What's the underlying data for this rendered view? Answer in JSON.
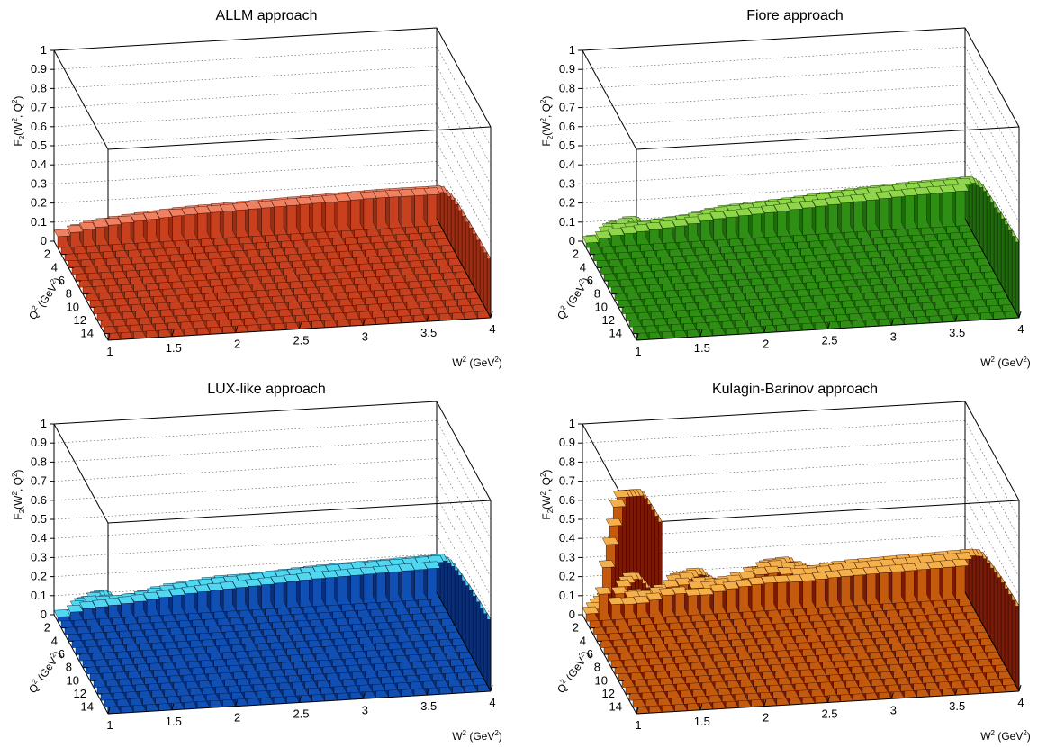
{
  "axes": {
    "x_label": "W",
    "x_label_sup": "2",
    "x_label_unit": "(GeV",
    "x_label_unit_sup": "2",
    "x_label_unit_close": ")",
    "y_label": "Q",
    "y_label_sup": "2",
    "y_label_unit": "(GeV",
    "y_label_unit_sup": "2",
    "y_label_unit_close": ")",
    "z_label_main": "F",
    "z_label_sub": "2",
    "z_label_args": "(W",
    "z_label_args_sup": "2",
    "z_label_args_rest": ", Q",
    "z_label_args_sup2": "2",
    "z_label_args_close": ")"
  },
  "chart_data": [
    {
      "type": "lego3d",
      "title": "ALLM approach",
      "colors": {
        "top": "#f08060",
        "front": "#c8401e",
        "side": "#9a2e14",
        "edge": "#2a0a00"
      },
      "x": {
        "range": [
          1,
          4
        ],
        "ticks": [
          "1",
          "1.5",
          "2",
          "2.5",
          "3",
          "3.5",
          "4"
        ],
        "tick_values": [
          1,
          1.5,
          2,
          2.5,
          3,
          3.5,
          4
        ]
      },
      "y": {
        "range": [
          0,
          15
        ],
        "ticks": [
          "2",
          "4",
          "6",
          "8",
          "10",
          "12",
          "14"
        ],
        "tick_values": [
          2,
          4,
          6,
          8,
          10,
          12,
          14
        ]
      },
      "z": {
        "range": [
          0,
          1
        ],
        "ticks": [
          "0",
          "0.1",
          "0.2",
          "0.3",
          "0.4",
          "0.5",
          "0.6",
          "0.7",
          "0.8",
          "0.9",
          "1"
        ],
        "tick_values": [
          0,
          0.1,
          0.2,
          0.3,
          0.4,
          0.5,
          0.6,
          0.7,
          0.8,
          0.9,
          1
        ]
      },
      "surface": {
        "q2_points": [
          0,
          2,
          5,
          10,
          15
        ],
        "w2_points": [
          1,
          1.1,
          1.3,
          1.6,
          2,
          2.5,
          3,
          3.5,
          4
        ],
        "values": [
          [
            0.03,
            0.05,
            0.07,
            0.09,
            0.11,
            0.12,
            0.13,
            0.14,
            0.14
          ],
          [
            0.1,
            0.13,
            0.16,
            0.18,
            0.2,
            0.21,
            0.22,
            0.23,
            0.23
          ],
          [
            0.12,
            0.16,
            0.19,
            0.22,
            0.24,
            0.26,
            0.27,
            0.28,
            0.28
          ],
          [
            0.13,
            0.18,
            0.21,
            0.24,
            0.26,
            0.28,
            0.29,
            0.3,
            0.3
          ],
          [
            0.14,
            0.19,
            0.22,
            0.25,
            0.27,
            0.29,
            0.3,
            0.31,
            0.31
          ]
        ]
      }
    },
    {
      "type": "lego3d",
      "title": "Fiore approach",
      "colors": {
        "top": "#8fd64a",
        "front": "#2f8f14",
        "side": "#1f6a0c",
        "edge": "#0a2600"
      },
      "x": {
        "range": [
          1,
          4
        ],
        "ticks": [
          "1",
          "1.5",
          "2",
          "2.5",
          "3",
          "3.5",
          "4"
        ],
        "tick_values": [
          1,
          1.5,
          2,
          2.5,
          3,
          3.5,
          4
        ]
      },
      "y": {
        "range": [
          0,
          15
        ],
        "ticks": [
          "2",
          "4",
          "6",
          "8",
          "10",
          "12",
          "14"
        ],
        "tick_values": [
          2,
          4,
          6,
          8,
          10,
          12,
          14
        ]
      },
      "z": {
        "range": [
          0,
          1
        ],
        "ticks": [
          "0",
          "0.1",
          "0.2",
          "0.3",
          "0.4",
          "0.5",
          "0.6",
          "0.7",
          "0.8",
          "0.9",
          "1"
        ],
        "tick_values": [
          0,
          0.1,
          0.2,
          0.3,
          0.4,
          0.5,
          0.6,
          0.7,
          0.8,
          0.9,
          1
        ]
      },
      "surface": {
        "q2_points": [
          0,
          2,
          5,
          10,
          15
        ],
        "w2_points": [
          1,
          1.1,
          1.2,
          1.4,
          1.6,
          1.8,
          2,
          2.5,
          3,
          3.5,
          4
        ],
        "values": [
          [
            0.0,
            0.01,
            0.02,
            0.04,
            0.05,
            0.06,
            0.08,
            0.1,
            0.12,
            0.14,
            0.15
          ],
          [
            0.05,
            0.12,
            0.15,
            0.14,
            0.16,
            0.17,
            0.2,
            0.22,
            0.25,
            0.27,
            0.28
          ],
          [
            0.1,
            0.22,
            0.3,
            0.22,
            0.22,
            0.24,
            0.28,
            0.3,
            0.32,
            0.34,
            0.35
          ],
          [
            0.14,
            0.3,
            0.38,
            0.26,
            0.24,
            0.28,
            0.32,
            0.33,
            0.35,
            0.37,
            0.38
          ],
          [
            0.16,
            0.34,
            0.41,
            0.28,
            0.25,
            0.3,
            0.34,
            0.35,
            0.37,
            0.39,
            0.4
          ]
        ]
      }
    },
    {
      "type": "lego3d",
      "title": "LUX-like approach",
      "colors": {
        "top": "#4fd8f0",
        "front": "#1050b4",
        "side": "#0a2f7a",
        "edge": "#000a2a"
      },
      "x": {
        "range": [
          1,
          4
        ],
        "ticks": [
          "1",
          "1.5",
          "2",
          "2.5",
          "3",
          "3.5",
          "4"
        ],
        "tick_values": [
          1,
          1.5,
          2,
          2.5,
          3,
          3.5,
          4
        ]
      },
      "y": {
        "range": [
          0,
          15
        ],
        "ticks": [
          "2",
          "4",
          "6",
          "8",
          "10",
          "12",
          "14"
        ],
        "tick_values": [
          2,
          4,
          6,
          8,
          10,
          12,
          14
        ]
      },
      "z": {
        "range": [
          0,
          1
        ],
        "ticks": [
          "0",
          "0.1",
          "0.2",
          "0.3",
          "0.4",
          "0.5",
          "0.6",
          "0.7",
          "0.8",
          "0.9",
          "1"
        ],
        "tick_values": [
          0,
          0.1,
          0.2,
          0.3,
          0.4,
          0.5,
          0.6,
          0.7,
          0.8,
          0.9,
          1
        ]
      },
      "surface": {
        "q2_points": [
          0,
          2,
          5,
          10,
          15
        ],
        "w2_points": [
          1,
          1.1,
          1.2,
          1.4,
          1.6,
          1.8,
          2,
          2.2,
          2.5,
          3,
          3.5,
          4
        ],
        "values": [
          [
            0.0,
            0.01,
            0.02,
            0.04,
            0.05,
            0.06,
            0.07,
            0.08,
            0.09,
            0.11,
            0.12,
            0.13
          ],
          [
            0.05,
            0.1,
            0.16,
            0.14,
            0.15,
            0.18,
            0.2,
            0.21,
            0.22,
            0.24,
            0.25,
            0.26
          ],
          [
            0.1,
            0.2,
            0.3,
            0.2,
            0.22,
            0.28,
            0.24,
            0.3,
            0.27,
            0.3,
            0.31,
            0.32
          ],
          [
            0.14,
            0.28,
            0.37,
            0.22,
            0.24,
            0.33,
            0.26,
            0.36,
            0.3,
            0.34,
            0.35,
            0.36
          ],
          [
            0.16,
            0.32,
            0.4,
            0.23,
            0.25,
            0.35,
            0.27,
            0.4,
            0.31,
            0.36,
            0.37,
            0.38
          ]
        ]
      }
    },
    {
      "type": "lego3d",
      "title": "Kulagin-Barinov approach",
      "colors": {
        "top": "#f4b04a",
        "front": "#c45a0e",
        "side": "#7a1a06",
        "edge": "#2a0500"
      },
      "x": {
        "range": [
          1,
          4
        ],
        "ticks": [
          "1",
          "1.5",
          "2",
          "2.5",
          "3",
          "3.5",
          "4"
        ],
        "tick_values": [
          1,
          1.5,
          2,
          2.5,
          3,
          3.5,
          4
        ]
      },
      "y": {
        "range": [
          0,
          15
        ],
        "ticks": [
          "2",
          "4",
          "6",
          "8",
          "10",
          "12",
          "14"
        ],
        "tick_values": [
          2,
          4,
          6,
          8,
          10,
          12,
          14
        ]
      },
      "z": {
        "range": [
          0,
          1
        ],
        "ticks": [
          "0",
          "0.1",
          "0.2",
          "0.3",
          "0.4",
          "0.5",
          "0.6",
          "0.7",
          "0.8",
          "0.9",
          "1"
        ],
        "tick_values": [
          0,
          0.1,
          0.2,
          0.3,
          0.4,
          0.5,
          0.6,
          0.7,
          0.8,
          0.9,
          1
        ]
      },
      "surface": {
        "q2_points": [
          0,
          2,
          5,
          10,
          15
        ],
        "w2_points": [
          1,
          1.1,
          1.15,
          1.2,
          1.3,
          1.5,
          1.7,
          1.9,
          2.1,
          2.4,
          2.7,
          3,
          3.5,
          4
        ],
        "values": [
          [
            0.0,
            0.02,
            0.05,
            0.03,
            0.04,
            0.05,
            0.08,
            0.06,
            0.09,
            0.1,
            0.11,
            0.12,
            0.13,
            0.14
          ],
          [
            0.05,
            0.2,
            0.4,
            0.25,
            0.18,
            0.17,
            0.25,
            0.2,
            0.22,
            0.28,
            0.24,
            0.26,
            0.27,
            0.28
          ],
          [
            0.1,
            0.45,
            0.8,
            0.5,
            0.25,
            0.24,
            0.4,
            0.3,
            0.3,
            0.42,
            0.33,
            0.36,
            0.37,
            0.38
          ],
          [
            0.14,
            0.6,
            0.98,
            0.6,
            0.28,
            0.27,
            0.5,
            0.35,
            0.33,
            0.5,
            0.38,
            0.41,
            0.42,
            0.43
          ],
          [
            0.16,
            0.62,
            1.0,
            0.62,
            0.29,
            0.28,
            0.52,
            0.36,
            0.34,
            0.53,
            0.4,
            0.43,
            0.44,
            0.45
          ]
        ]
      }
    }
  ]
}
